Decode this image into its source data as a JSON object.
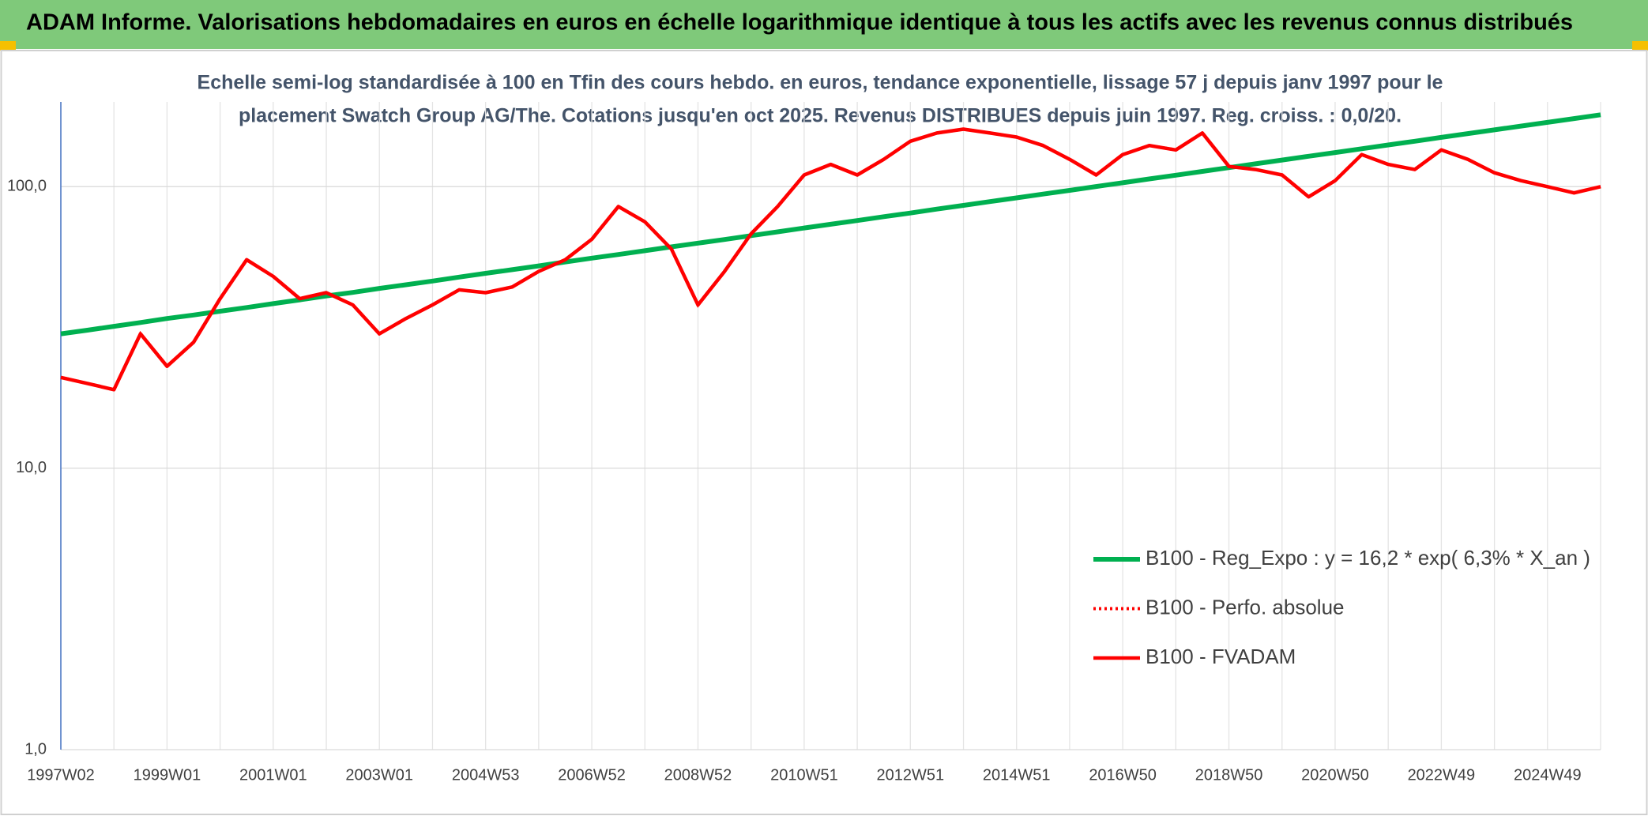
{
  "chart_data": {
    "type": "line",
    "title": "ADAM Informe. Valorisations hebdomadaires en euros en échelle logarithmique identique à tous les actifs avec les revenus connus distribués",
    "subtitle": [
      "Echelle semi-log standardisée à 100 en Tfin des cours hebdo. en euros, tendance exponentielle, lissage 57 j depuis janv 1997 pour le",
      "placement Swatch Group AG/The. Cotations jusqu'en oct 2025. Revenus DISTRIBUES depuis juin 1997. Reg. croiss. : 0,0/20."
    ],
    "categories": [
      "1997W02",
      null,
      null,
      null,
      "1999W01",
      null,
      null,
      null,
      "2001W01",
      null,
      null,
      null,
      "2003W01",
      null,
      null,
      null,
      "2004W53",
      null,
      null,
      null,
      "2006W52",
      null,
      null,
      null,
      "2008W52",
      null,
      null,
      null,
      "2010W51",
      null,
      null,
      null,
      "2012W51",
      null,
      null,
      null,
      "2014W51",
      null,
      null,
      null,
      "2016W50",
      null,
      null,
      null,
      "2018W50",
      null,
      null,
      null,
      "2020W50",
      null,
      null,
      null,
      "2022W49",
      null,
      null,
      null,
      "2024W49",
      null,
      null
    ],
    "series": [
      {
        "name": "B100 - Reg_Expo : y = 16,2 * exp( 6,3% *  X_an )",
        "color": "#00b050",
        "style": "solid",
        "values": [
          30.0,
          30.9,
          31.9,
          32.9,
          34.0,
          35.0,
          36.1,
          37.2,
          38.4,
          39.6,
          40.9,
          42.1,
          43.5,
          44.8,
          46.2,
          47.7,
          49.2,
          50.7,
          52.3,
          54.0,
          55.7,
          57.4,
          59.2,
          61.1,
          63.0,
          64.9,
          67.0,
          69.1,
          71.3,
          73.5,
          75.8,
          78.2,
          80.6,
          83.2,
          85.8,
          88.5,
          91.2,
          94.1,
          97.0,
          100.1,
          103.2,
          106.5,
          109.8,
          113.3,
          116.8,
          120.5,
          124.3,
          128.2,
          132.2,
          136.3,
          140.6,
          145.0,
          149.6,
          154.3,
          159.1,
          164.1,
          169.2,
          174.5,
          180.0
        ]
      },
      {
        "name": "B100 - Perfo. absolue",
        "color": "#ff0000",
        "style": "dotted",
        "values": [
          21,
          20,
          19,
          30,
          23,
          28,
          40,
          55,
          48,
          40,
          42,
          38,
          30,
          34,
          38,
          43,
          42,
          44,
          50,
          55,
          65,
          85,
          75,
          60,
          38,
          50,
          68,
          85,
          110,
          120,
          110,
          125,
          145,
          155,
          160,
          155,
          150,
          140,
          125,
          110,
          130,
          140,
          135,
          155,
          118,
          115,
          110,
          92,
          105,
          130,
          120,
          115,
          135,
          125,
          112,
          105,
          100,
          95,
          100
        ]
      },
      {
        "name": "B100 - FVADAM",
        "color": "#ff0000",
        "style": "solid",
        "values": [
          21,
          20,
          19,
          30,
          23,
          28,
          40,
          55,
          48,
          40,
          42,
          38,
          30,
          34,
          38,
          43,
          42,
          44,
          50,
          55,
          65,
          85,
          75,
          60,
          38,
          50,
          68,
          85,
          110,
          120,
          110,
          125,
          145,
          155,
          160,
          155,
          150,
          140,
          125,
          110,
          130,
          140,
          135,
          155,
          118,
          115,
          110,
          92,
          105,
          130,
          120,
          115,
          135,
          125,
          112,
          105,
          100,
          95,
          100
        ]
      }
    ],
    "ylim": [
      1,
      200
    ],
    "yticks": [
      {
        "value": 1,
        "label": "1,0"
      },
      {
        "value": 10,
        "label": "10,0"
      },
      {
        "value": 100,
        "label": "100,0"
      }
    ],
    "log_scale": true,
    "grid": true,
    "legend": "right"
  }
}
